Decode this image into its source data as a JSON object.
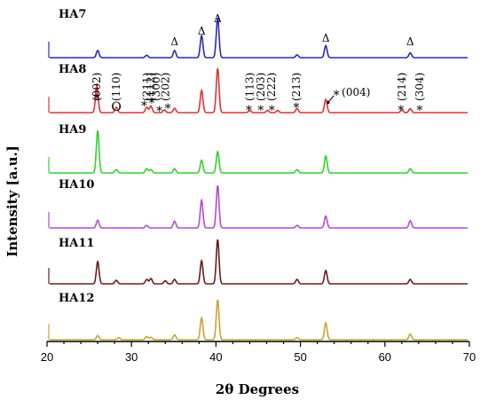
{
  "chart_data": {
    "type": "line",
    "xlabel": "2θ Degrees",
    "ylabel": "Intensity [a.u.]",
    "xlim": [
      20,
      70
    ],
    "xticks": [
      20,
      30,
      40,
      50,
      60,
      70
    ],
    "series": [
      {
        "name": "HA7",
        "color": "#2727c4",
        "peaks": [
          [
            26.0,
            0.18
          ],
          [
            31.8,
            0.06
          ],
          [
            35.1,
            0.18
          ],
          [
            38.3,
            0.55
          ],
          [
            40.2,
            1.0
          ],
          [
            49.6,
            0.07
          ],
          [
            53.0,
            0.3
          ],
          [
            63.0,
            0.12
          ]
        ]
      },
      {
        "name": "HA8",
        "color": "#e23232",
        "peaks": [
          [
            25.9,
            0.62
          ],
          [
            28.2,
            0.12
          ],
          [
            31.8,
            0.12
          ],
          [
            32.3,
            0.15
          ],
          [
            33.9,
            0.06
          ],
          [
            35.1,
            0.1
          ],
          [
            38.3,
            0.5
          ],
          [
            40.2,
            1.0
          ],
          [
            44.0,
            0.05
          ],
          [
            46.1,
            0.05
          ],
          [
            47.3,
            0.05
          ],
          [
            49.6,
            0.09
          ],
          [
            53.0,
            0.3
          ],
          [
            62.0,
            0.06
          ],
          [
            63.0,
            0.09
          ]
        ]
      },
      {
        "name": "HA9",
        "color": "#2dd42d",
        "peaks": [
          [
            26.0,
            1.0
          ],
          [
            28.2,
            0.08
          ],
          [
            31.8,
            0.1
          ],
          [
            32.3,
            0.08
          ],
          [
            35.1,
            0.1
          ],
          [
            38.3,
            0.3
          ],
          [
            40.2,
            0.5
          ],
          [
            49.6,
            0.08
          ],
          [
            53.0,
            0.4
          ],
          [
            63.0,
            0.1
          ]
        ]
      },
      {
        "name": "HA10",
        "color": "#b24ad8",
        "peaks": [
          [
            26.0,
            0.18
          ],
          [
            31.8,
            0.06
          ],
          [
            35.1,
            0.16
          ],
          [
            38.3,
            0.65
          ],
          [
            40.2,
            1.0
          ],
          [
            49.6,
            0.06
          ],
          [
            53.0,
            0.28
          ],
          [
            63.0,
            0.17
          ]
        ]
      },
      {
        "name": "HA11",
        "color": "#6a1e17",
        "peaks": [
          [
            26.0,
            0.5
          ],
          [
            28.2,
            0.08
          ],
          [
            31.8,
            0.1
          ],
          [
            32.3,
            0.12
          ],
          [
            34.0,
            0.07
          ],
          [
            35.1,
            0.1
          ],
          [
            38.3,
            0.52
          ],
          [
            40.2,
            1.0
          ],
          [
            49.6,
            0.1
          ],
          [
            53.0,
            0.3
          ],
          [
            63.0,
            0.1
          ]
        ]
      },
      {
        "name": "HA12",
        "color": "#c9a32f",
        "peaks": [
          [
            26.0,
            0.1
          ],
          [
            28.5,
            0.05
          ],
          [
            31.8,
            0.08
          ],
          [
            32.3,
            0.06
          ],
          [
            35.1,
            0.12
          ],
          [
            38.3,
            0.55
          ],
          [
            40.2,
            1.0
          ],
          [
            49.6,
            0.05
          ],
          [
            53.0,
            0.42
          ],
          [
            63.0,
            0.14
          ]
        ]
      }
    ],
    "annotations": {
      "delta": {
        "symbol": "Δ",
        "series": "HA7",
        "positions": [
          35.1,
          38.3,
          40.2,
          53.0,
          63.0
        ]
      },
      "hkl": [
        {
          "text": "(002)",
          "x": 25.9
        },
        {
          "text": "(110)",
          "x": 28.2
        },
        {
          "text": "(211)",
          "x": 31.8
        },
        {
          "text": "(112)",
          "x": 32.3
        },
        {
          "text": "(300)",
          "x": 32.9
        },
        {
          "text": "(202)",
          "x": 34.0
        },
        {
          "text": "(113)",
          "x": 44.0
        },
        {
          "text": "(203)",
          "x": 45.3
        },
        {
          "text": "(222)",
          "x": 46.6
        },
        {
          "text": "(213)",
          "x": 49.5
        },
        {
          "text": "(214)",
          "x": 62.0
        },
        {
          "text": "(304)",
          "x": 64.1
        }
      ],
      "markers": [
        {
          "symbol": "*",
          "x": 25.9
        },
        {
          "symbol": "O",
          "x": 28.2
        },
        {
          "symbol": "*",
          "x": 31.5
        },
        {
          "symbol": "*",
          "x": 32.4
        },
        {
          "symbol": "*",
          "x": 33.3
        },
        {
          "symbol": "*",
          "x": 34.3
        },
        {
          "symbol": "*",
          "x": 43.9
        },
        {
          "symbol": "*",
          "x": 45.3
        },
        {
          "symbol": "*",
          "x": 46.6
        },
        {
          "symbol": "*",
          "x": 49.5
        },
        {
          "symbol": "*",
          "x": 61.9
        },
        {
          "symbol": "*",
          "x": 64.1
        }
      ],
      "callout": {
        "symbol": "*",
        "text": "(004)",
        "x": 53.0
      }
    }
  }
}
